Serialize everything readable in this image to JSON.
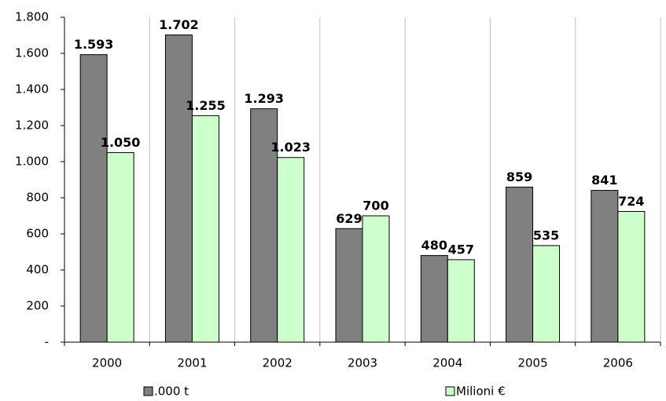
{
  "chart_data": {
    "type": "bar",
    "categories": [
      "2000",
      "2001",
      "2002",
      "2003",
      "2004",
      "2005",
      "2006"
    ],
    "series": [
      {
        "name": ".000 t",
        "color": "#808080",
        "values": [
          1593,
          1702,
          1293,
          629,
          480,
          859,
          841
        ],
        "value_labels": [
          "1.593",
          "1.702",
          "1.293",
          "629",
          "480",
          "859",
          "841"
        ]
      },
      {
        "name": "Milioni €",
        "color": "#ccffcc",
        "values": [
          1050,
          1255,
          1023,
          700,
          457,
          535,
          724
        ],
        "value_labels": [
          "1.050",
          "1.255",
          "1.023",
          "700",
          "457",
          "535",
          "724"
        ]
      }
    ],
    "ylim": [
      0,
      1800
    ],
    "yticks": [
      {
        "value": 0,
        "label": "-"
      },
      200,
      400,
      600,
      800,
      {
        "value": 1000,
        "label": "1.000"
      },
      {
        "value": 1200,
        "label": "1.200"
      },
      {
        "value": 1400,
        "label": "1.400"
      },
      {
        "value": 1600,
        "label": "1.600"
      },
      {
        "value": 1800,
        "label": "1.800"
      }
    ],
    "grid": true,
    "legend": "bottom"
  }
}
